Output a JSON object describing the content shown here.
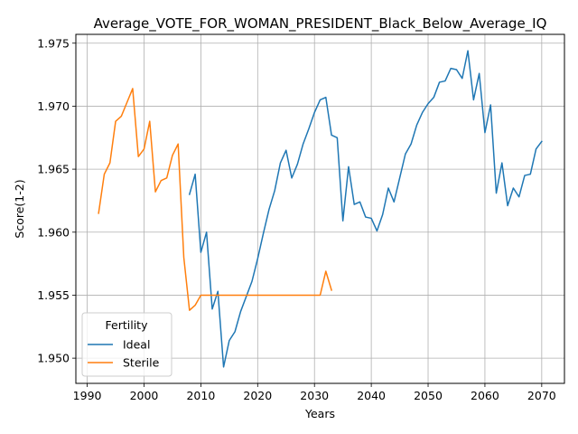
{
  "chart_data": {
    "type": "line",
    "title": "Average_VOTE_FOR_WOMAN_PRESIDENT_Black_Below_Average_IQ",
    "xlabel": "Years",
    "ylabel": "Score(1-2)",
    "xlim": [
      1988,
      2074
    ],
    "ylim": [
      1.948,
      1.9757
    ],
    "x_ticks": [
      1990,
      2000,
      2010,
      2020,
      2030,
      2040,
      2050,
      2060,
      2070
    ],
    "y_ticks": [
      1.95,
      1.955,
      1.96,
      1.965,
      1.97,
      1.975
    ],
    "grid": true,
    "legend": {
      "title": "Fertility",
      "placement": "lower-left"
    },
    "series": [
      {
        "name": "Ideal",
        "color": "#1f77b4",
        "x": [
          2008,
          2009,
          2010,
          2011,
          2012,
          2013,
          2014,
          2015,
          2016,
          2017,
          2018,
          2019,
          2020,
          2021,
          2022,
          2023,
          2024,
          2025,
          2026,
          2027,
          2028,
          2029,
          2030,
          2031,
          2032,
          2033,
          2034,
          2035,
          2036,
          2037,
          2038,
          2039,
          2040,
          2041,
          2042,
          2043,
          2044,
          2045,
          2046,
          2047,
          2048,
          2049,
          2050,
          2051,
          2052,
          2053,
          2054,
          2055,
          2056,
          2057,
          2058,
          2059,
          2060,
          2061,
          2062,
          2063,
          2064,
          2065,
          2066,
          2067,
          2068,
          2069,
          2070
        ],
        "values": [
          1.963,
          1.9646,
          1.9584,
          1.96,
          1.9539,
          1.9553,
          1.9493,
          1.9514,
          1.9521,
          1.9537,
          1.9549,
          1.9561,
          1.9579,
          1.9599,
          1.9618,
          1.9633,
          1.9655,
          1.9665,
          1.9643,
          1.9654,
          1.967,
          1.9682,
          1.9695,
          1.9705,
          1.9707,
          1.9677,
          1.9675,
          1.9609,
          1.9652,
          1.9622,
          1.9624,
          1.9612,
          1.9611,
          1.9601,
          1.9614,
          1.9635,
          1.9624,
          1.9643,
          1.9662,
          1.967,
          1.9685,
          1.9695,
          1.9702,
          1.9707,
          1.9719,
          1.972,
          1.973,
          1.9729,
          1.9722,
          1.9744,
          1.9705,
          1.9726,
          1.9679,
          1.9701,
          1.9631,
          1.9655,
          1.9621,
          1.9635,
          1.9628,
          1.9645,
          1.9646,
          1.9666,
          1.9672
        ]
      },
      {
        "name": "Sterile",
        "color": "#ff7f0e",
        "x": [
          1992,
          1993,
          1994,
          1995,
          1996,
          1997,
          1998,
          1999,
          2000,
          2001,
          2002,
          2003,
          2004,
          2005,
          2006,
          2007,
          2008,
          2009,
          2010,
          2011,
          2012,
          2013,
          2014,
          2015,
          2016,
          2017,
          2018,
          2019,
          2020,
          2021,
          2022,
          2023,
          2024,
          2025,
          2026,
          2027,
          2028,
          2029,
          2030,
          2031,
          2032,
          2033
        ],
        "values": [
          1.9615,
          1.9646,
          1.9655,
          1.9688,
          1.9692,
          1.9703,
          1.9714,
          1.966,
          1.9666,
          1.9688,
          1.9632,
          1.9641,
          1.9643,
          1.9661,
          1.967,
          1.958,
          1.9538,
          1.9542,
          1.955,
          1.955,
          1.955,
          1.955,
          1.955,
          1.955,
          1.955,
          1.955,
          1.955,
          1.955,
          1.955,
          1.955,
          1.955,
          1.955,
          1.955,
          1.955,
          1.955,
          1.955,
          1.955,
          1.955,
          1.955,
          1.955,
          1.9569,
          1.9554
        ]
      }
    ]
  }
}
